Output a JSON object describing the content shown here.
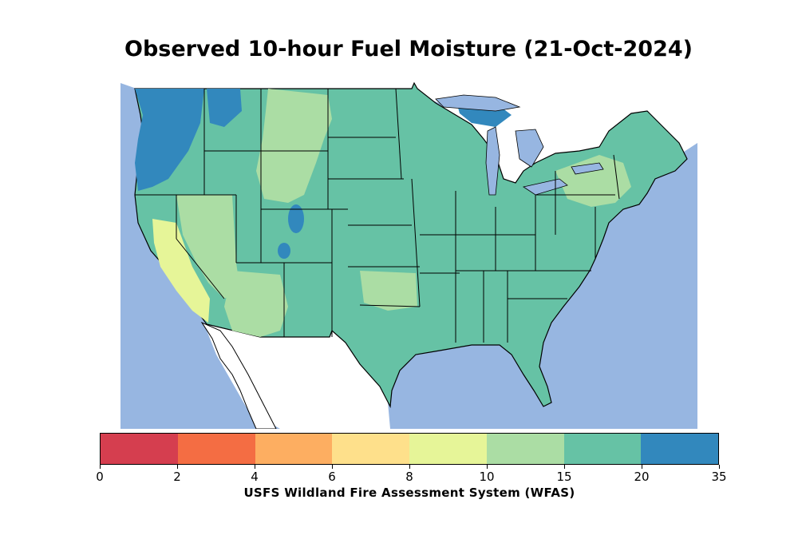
{
  "title": "Observed 10-hour Fuel Moisture (21-Oct-2024)",
  "colorbar": {
    "label": "USFS Wildland Fire Assessment System (WFAS)",
    "ticks": [
      "0",
      "2",
      "4",
      "6",
      "8",
      "10",
      "15",
      "20",
      "35"
    ],
    "bins": [
      {
        "range": "0-2",
        "color": "#d53e4f"
      },
      {
        "range": "2-4",
        "color": "#f46d43"
      },
      {
        "range": "4-6",
        "color": "#fdae61"
      },
      {
        "range": "6-8",
        "color": "#fee08b"
      },
      {
        "range": "8-10",
        "color": "#e6f598"
      },
      {
        "range": "10-15",
        "color": "#abdda4"
      },
      {
        "range": "15-20",
        "color": "#66c2a5"
      },
      {
        "range": "20-35",
        "color": "#3288bd"
      }
    ]
  },
  "map": {
    "region": "Contiguous United States",
    "water_color": "#97b6e1",
    "land_outside_color": "#ffffff",
    "dominant_class": "15-20",
    "regional_classes": [
      {
        "region": "Pacific Northwest coast",
        "class": "20-35"
      },
      {
        "region": "Northern Idaho",
        "class": "20-35"
      },
      {
        "region": "Nevada",
        "class": "10-15"
      },
      {
        "region": "Southern California",
        "class": "8-10"
      },
      {
        "region": "Wyoming and Montana plains",
        "class": "10-15"
      },
      {
        "region": "Oklahoma",
        "class": "10-15"
      },
      {
        "region": "Northern Michigan",
        "class": "20-35"
      },
      {
        "region": "Colorado Rockies patches",
        "class": "20-35"
      },
      {
        "region": "Southeast and Midwest",
        "class": "15-20"
      }
    ]
  }
}
